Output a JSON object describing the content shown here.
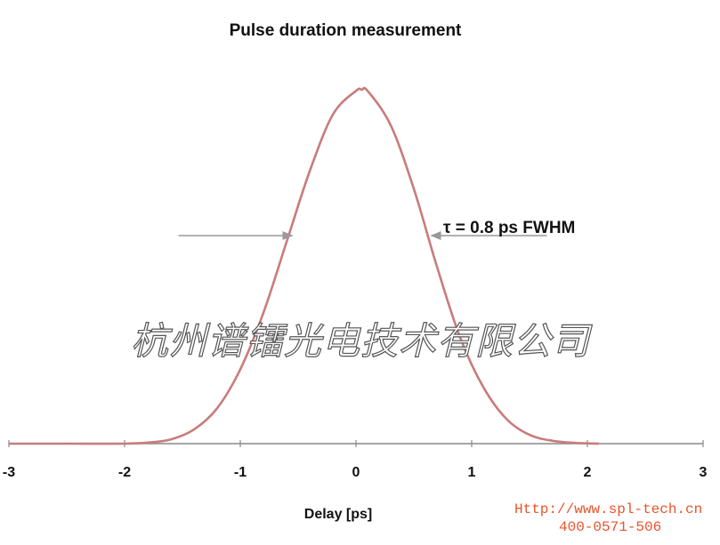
{
  "chart_data": {
    "type": "line",
    "title": "Pulse duration measurement",
    "xlabel": "Delay [ps]",
    "ylabel": "",
    "xlim": [
      -3,
      3
    ],
    "ylim": [
      0,
      1
    ],
    "x_ticks": [
      "-3",
      "-2",
      "-1",
      "0",
      "1",
      "2",
      "3"
    ],
    "grid": false,
    "series": [
      {
        "color": "#c97b7b",
        "x": [
          -3.0,
          -2.5,
          -2.0,
          -1.8,
          -1.6,
          -1.4,
          -1.2,
          -1.0,
          -0.8,
          -0.6,
          -0.4,
          -0.2,
          0.0,
          0.05,
          0.1,
          0.3,
          0.5,
          0.7,
          0.9,
          1.1,
          1.3,
          1.5,
          1.7,
          1.9,
          2.1
        ],
        "y": [
          0.0,
          0.0,
          0.0,
          0.003,
          0.012,
          0.04,
          0.1,
          0.21,
          0.37,
          0.57,
          0.77,
          0.93,
          0.997,
          1.0,
          0.997,
          0.9,
          0.72,
          0.5,
          0.3,
          0.16,
          0.07,
          0.025,
          0.008,
          0.002,
          0.0
        ]
      }
    ],
    "annotation": {
      "text": "τ = 0.8 ps FWHM",
      "fwhm_ps": 0.8,
      "arrow_left_x": -0.55,
      "arrow_right_x": 0.65,
      "level": 0.5
    }
  },
  "watermark": {
    "company": "杭州谱镭光电技术有限公司",
    "url": "Http://www.spl-tech.cn",
    "phone": "400-0571-506"
  },
  "colors": {
    "curve": "#c97b7b",
    "axis": "#888888",
    "arrow": "#999999",
    "watermark_contact": "#e8542a"
  }
}
